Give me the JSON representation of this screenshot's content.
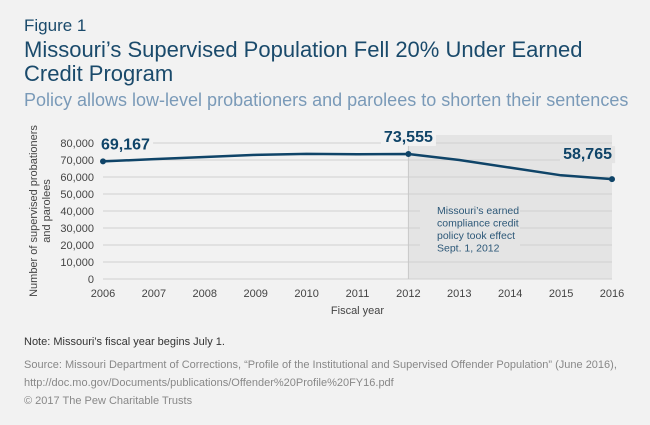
{
  "figure_label": "Figure 1",
  "title": "Missouri’s Supervised Population Fell 20% Under Earned Credit Program",
  "subtitle": "Policy allows low-level probationers and parolees to shorten their sentences",
  "note": "Note: Missouri’s fiscal year begins July 1.",
  "source": "Source: Missouri Department of Corrections, “Profile of the Institutional and Supervised Offender Population” (June 2016), http://doc.mo.gov/Documents/publications/Offender%20Profile%20FY16.pdf",
  "copyright": "© 2017 The Pew Charitable Trusts",
  "colors": {
    "line": "#0f4468",
    "shade": "#e4e4e4",
    "grid": "#d0d0d0"
  },
  "chart_data": {
    "type": "line",
    "xlabel": "Fiscal year",
    "ylabel": "Number of supervised probationers and parolees",
    "x": [
      2006,
      2007,
      2008,
      2009,
      2010,
      2011,
      2012,
      2013,
      2014,
      2015,
      2016
    ],
    "y": [
      69167,
      70500,
      71800,
      73000,
      73600,
      73400,
      73555,
      70000,
      65500,
      61000,
      58765
    ],
    "ylim": [
      0,
      80000
    ],
    "yticks": [
      "0",
      "10,000",
      "20,000",
      "30,000",
      "40,000",
      "50,000",
      "60,000",
      "70,000",
      "80,000"
    ],
    "xticks": [
      "2006",
      "2007",
      "2008",
      "2009",
      "2010",
      "2011",
      "2012",
      "2013",
      "2014",
      "2015",
      "2016"
    ],
    "grid": true,
    "data_labels": [
      {
        "x": 2006,
        "text": "69,167"
      },
      {
        "x": 2012,
        "text": "73,555"
      },
      {
        "x": 2016,
        "text": "58,765"
      }
    ],
    "shaded_region": {
      "from": 2012,
      "to": 2016
    },
    "annotation": [
      "Missouri’s earned",
      "compliance credit",
      "policy took effect",
      "Sept. 1, 2012"
    ]
  }
}
